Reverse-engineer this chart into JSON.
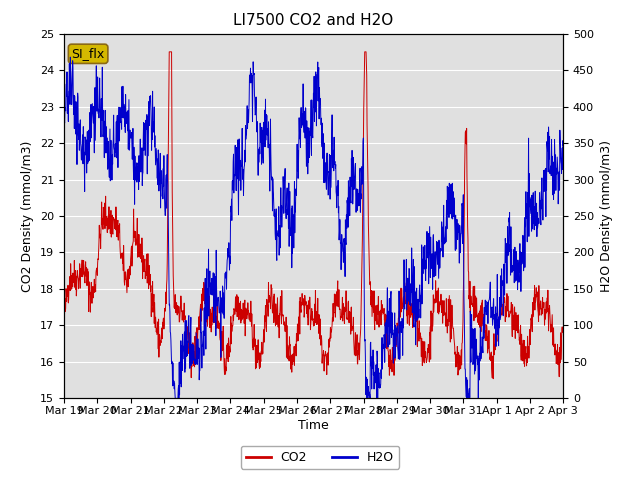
{
  "title": "LI7500 CO2 and H2O",
  "xlabel": "Time",
  "ylabel_left": "CO2 Density (mmol/m3)",
  "ylabel_right": "H2O Density (mmol/m3)",
  "ylim_left": [
    15.0,
    25.0
  ],
  "ylim_right": [
    0,
    500
  ],
  "annotation_text": "SI_flx",
  "annotation_bg": "#d4b800",
  "annotation_border": "#8B6914",
  "co2_color": "#cc0000",
  "h2o_color": "#0000cc",
  "background_color": "#e0e0e0",
  "figure_color": "#ffffff",
  "grid_color": "#ffffff",
  "title_fontsize": 11,
  "axis_label_fontsize": 9,
  "tick_fontsize": 8,
  "legend_fontsize": 9,
  "xtick_labels": [
    "Mar 19",
    "Mar 20",
    "Mar 21",
    "Mar 22",
    "Mar 23",
    "Mar 24",
    "Mar 25",
    "Mar 26",
    "Mar 27",
    "Mar 28",
    "Mar 29",
    "Mar 30",
    "Mar 31",
    "Apr 1",
    "Apr 2",
    "Apr 3"
  ],
  "num_points": 1500,
  "seed": 42
}
